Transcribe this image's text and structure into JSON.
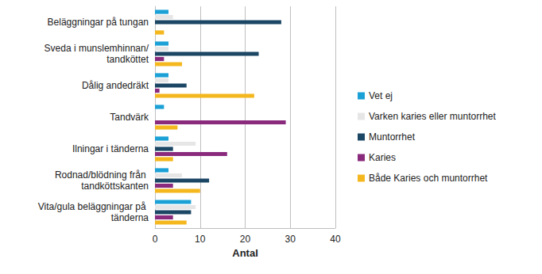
{
  "chart_data": {
    "type": "bar",
    "orientation": "horizontal",
    "categories": [
      "Beläggningar på tungan",
      "Sveda i munslemhinnan/tandköttet",
      "Dålig andedräkt",
      "Tandvärk",
      "Ilningar i tänderna",
      "Rodnad/blödning från tandköttskanten",
      "Vita/gula beläggningar på tänderna"
    ],
    "series": [
      {
        "name": "Vet ej",
        "color": "#1ba1d5",
        "values": [
          3,
          3,
          3,
          2,
          3,
          3,
          8
        ]
      },
      {
        "name": "Varken karies eller muntorrhet",
        "color": "#e6e6e6",
        "values": [
          4,
          3,
          3,
          0,
          9,
          6,
          9
        ]
      },
      {
        "name": "Muntorrhet",
        "color": "#1b4664",
        "values": [
          28,
          23,
          7,
          0,
          4,
          12,
          8
        ]
      },
      {
        "name": "Karies",
        "color": "#8a2a7c",
        "values": [
          0,
          2,
          1,
          29,
          16,
          4,
          4
        ]
      },
      {
        "name": "Både Karies och muntorrhet",
        "color": "#f4b71e",
        "values": [
          2,
          6,
          22,
          5,
          4,
          10,
          7
        ]
      }
    ],
    "x_label": "Antal",
    "xlim": [
      0,
      40
    ],
    "xticks": [
      0,
      10,
      20,
      30,
      40
    ],
    "grid": true,
    "legend": "right"
  }
}
